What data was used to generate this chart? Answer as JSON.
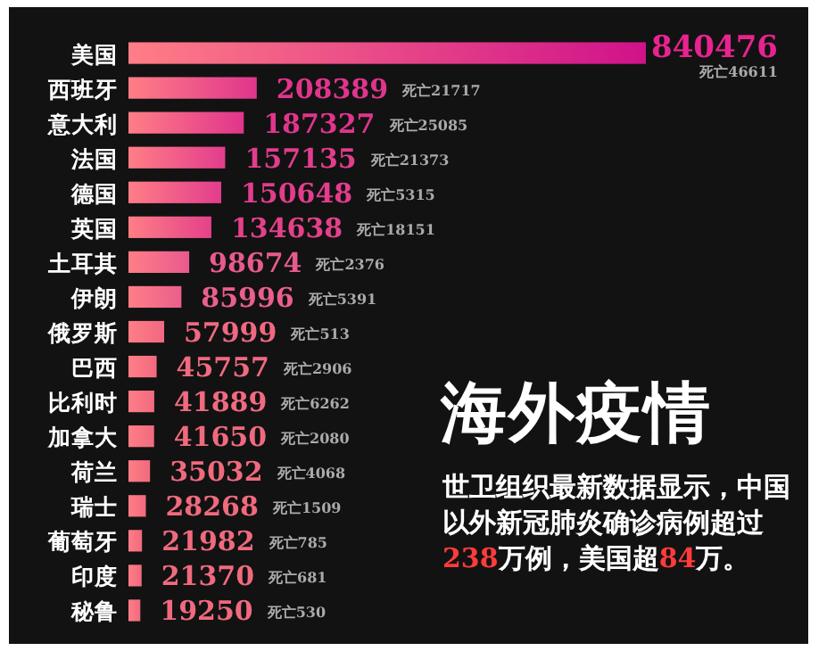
{
  "chart_data": {
    "type": "bar",
    "orientation": "horizontal",
    "title": "海外疫情",
    "subtitle": "世卫组织最新数据显示，中国以外新冠肺炎确诊病例超过238万例，美国超84万。",
    "categories": [
      "美国",
      "西班牙",
      "意大利",
      "法国",
      "德国",
      "英国",
      "土耳其",
      "伊朗",
      "俄罗斯",
      "巴西",
      "比利时",
      "加拿大",
      "荷兰",
      "瑞士",
      "葡萄牙",
      "印度",
      "秘鲁"
    ],
    "values": [
      840476,
      208389,
      187327,
      157135,
      150648,
      134638,
      98674,
      85996,
      57999,
      45757,
      41889,
      41650,
      35032,
      28268,
      21982,
      21370,
      19250
    ],
    "colors": [
      "#d0128a",
      "#e0358c",
      "#e0358c",
      "#e23d8c",
      "#e23d8c",
      "#e4418a",
      "#e85a8e",
      "#ea5f8c",
      "#f06882",
      "#f06a80",
      "#f06a80",
      "#f06a7e",
      "#f06a7e",
      "#f06a7e",
      "#f06a7e",
      "#f06a7e",
      "#f06a7e"
    ],
    "data_labels": true,
    "annotations": [
      "死亡46611",
      "死亡21717",
      "死亡25085",
      "死亡21373",
      "死亡5315",
      "死亡18151",
      "死亡2376",
      "死亡5391",
      "死亡513",
      "死亡2906",
      "死亡6262",
      "死亡2080",
      "死亡4068",
      "死亡1509",
      "死亡785",
      "死亡681",
      "死亡530"
    ]
  }
}
